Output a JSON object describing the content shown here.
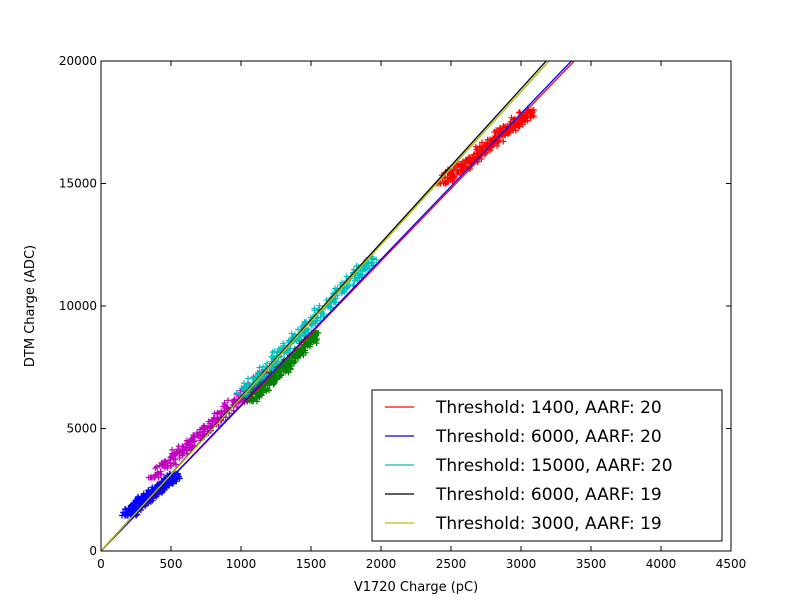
{
  "chart_data": {
    "type": "scatter",
    "xlabel": "V1720 Charge (pC)",
    "ylabel": "DTM Charge (ADC)",
    "xlim": [
      0,
      4500
    ],
    "ylim": [
      0,
      20000
    ],
    "xticks": [
      0,
      500,
      1000,
      1500,
      2000,
      2500,
      3000,
      3500,
      4000,
      4500
    ],
    "yticks": [
      0,
      5000,
      10000,
      15000,
      20000
    ],
    "grid": false,
    "legend_position": "lower-right",
    "scatter_bands": [
      {
        "color": "#0000ff",
        "x_range": [
          180,
          540
        ],
        "y_range": [
          1450,
          3150
        ],
        "slope": 5.9,
        "offset": 0
      },
      {
        "color": "#bf00bf",
        "x_range": [
          370,
          1190
        ],
        "y_range": [
          3000,
          7300
        ],
        "slope": 6.1,
        "offset": 0
      },
      {
        "color": "#008000",
        "x_range": [
          1060,
          1550
        ],
        "y_range": [
          6100,
          8900
        ],
        "slope": 5.75,
        "offset": 0
      },
      {
        "color": "#00bfbf",
        "x_range": [
          1000,
          1950
        ],
        "y_range": [
          6400,
          12000
        ],
        "slope": 6.15,
        "offset": 0
      },
      {
        "color": "#ff0000",
        "x_range": [
          2430,
          3080
        ],
        "y_range": [
          15000,
          18000
        ],
        "slope": 5.9,
        "offset": 0
      }
    ],
    "series": [
      {
        "name": "Threshold: 1400, AARF: 20",
        "color": "#ff0000",
        "x": [
          0,
          3380
        ],
        "y": [
          0,
          20000
        ]
      },
      {
        "name": "Threshold: 6000, AARF: 20",
        "color": "#0000ff",
        "x": [
          0,
          3360
        ],
        "y": [
          0,
          20000
        ]
      },
      {
        "name": "Threshold: 15000, AARF: 20",
        "color": "#00bfbf",
        "x": [
          0,
          3200
        ],
        "y": [
          0,
          20000
        ]
      },
      {
        "name": "Threshold: 6000, AARF: 19",
        "color": "#000000",
        "x": [
          0,
          3180
        ],
        "y": [
          0,
          20000
        ]
      },
      {
        "name": "Threshold: 3000, AARF: 19",
        "color": "#bfbf00",
        "x": [
          0,
          3200
        ],
        "y": [
          0,
          20000
        ]
      }
    ]
  }
}
